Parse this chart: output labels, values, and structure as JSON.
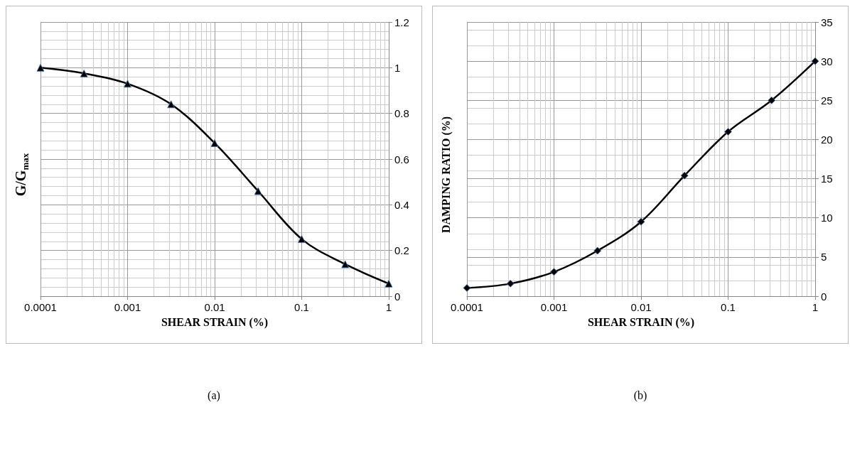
{
  "chart_data": [
    {
      "type": "line",
      "xlabel": "SHEAR STRAIN (%)",
      "ylabel": "G/G$_{max}$",
      "log": "x",
      "grid": true,
      "marker": "triangle",
      "annotations": [
        "(a)"
      ],
      "xlim": [
        0.0001,
        1
      ],
      "xticks": [
        0.0001,
        0.001,
        0.01,
        0.1,
        1
      ],
      "ylim": [
        0,
        1.2
      ],
      "yticks": [
        0,
        0.2,
        0.4,
        0.6,
        0.8,
        1,
        1.2
      ],
      "series": [
        {
          "color": "#000000",
          "x": [
            0.0001,
            0.000316,
            0.001,
            0.00316,
            0.01,
            0.0316,
            0.1,
            0.316,
            1
          ],
          "values": [
            1.0,
            0.975,
            0.93,
            0.84,
            0.67,
            0.46,
            0.25,
            0.14,
            0.055
          ]
        }
      ]
    },
    {
      "type": "line",
      "xlabel": "SHEAR STRAIN (%)",
      "ylabel": "DAMPING RATIO (%)",
      "log": "x",
      "grid": true,
      "marker": "diamond",
      "annotations": [
        "(b)"
      ],
      "xlim": [
        0.0001,
        1
      ],
      "xticks": [
        0.0001,
        0.001,
        0.01,
        0.1,
        1
      ],
      "ylim": [
        0,
        35
      ],
      "yticks": [
        0,
        5,
        10,
        15,
        20,
        25,
        30,
        35
      ],
      "series": [
        {
          "color": "#000000",
          "x": [
            0.0001,
            0.000316,
            0.001,
            0.00316,
            0.01,
            0.0316,
            0.1,
            0.316,
            1
          ],
          "values": [
            1.05,
            1.6,
            3.1,
            5.8,
            9.5,
            15.4,
            21,
            25,
            30
          ]
        }
      ]
    }
  ]
}
